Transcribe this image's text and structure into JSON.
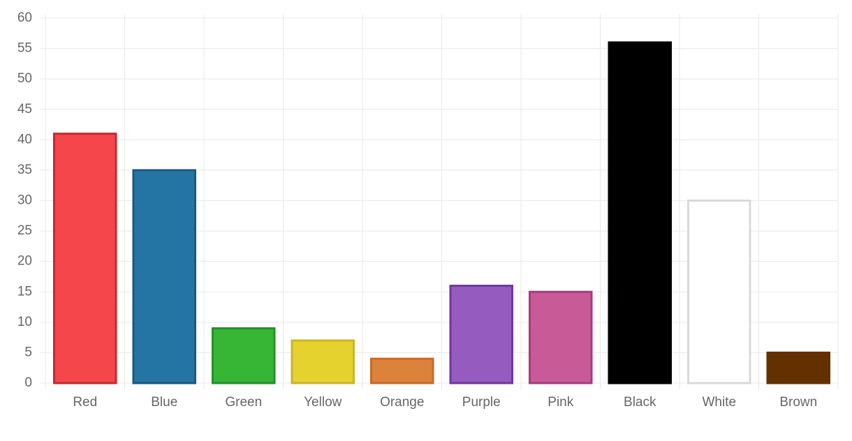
{
  "chart_data": {
    "type": "bar",
    "categories": [
      "Red",
      "Blue",
      "Green",
      "Yellow",
      "Orange",
      "Purple",
      "Pink",
      "Black",
      "White",
      "Brown"
    ],
    "values": [
      41,
      35,
      9,
      7,
      4,
      16,
      15,
      56,
      30,
      5
    ],
    "colors": [
      "#f5474b",
      "#2475a4",
      "#37b534",
      "#e6d22f",
      "#db823b",
      "#955bbf",
      "#c85a98",
      "#000000",
      "#ffffff",
      "#633100"
    ],
    "border_colors": [
      "#c9282c",
      "#195a82",
      "#24912a",
      "#c9b52a",
      "#c86a26",
      "#7236a0",
      "#a83a7c",
      "#000000",
      "#d9d9d9",
      "#633100"
    ],
    "ylim": [
      0,
      60
    ],
    "yticks": [
      0,
      5,
      10,
      15,
      20,
      25,
      30,
      35,
      40,
      45,
      50,
      55,
      60
    ],
    "grid": true
  }
}
